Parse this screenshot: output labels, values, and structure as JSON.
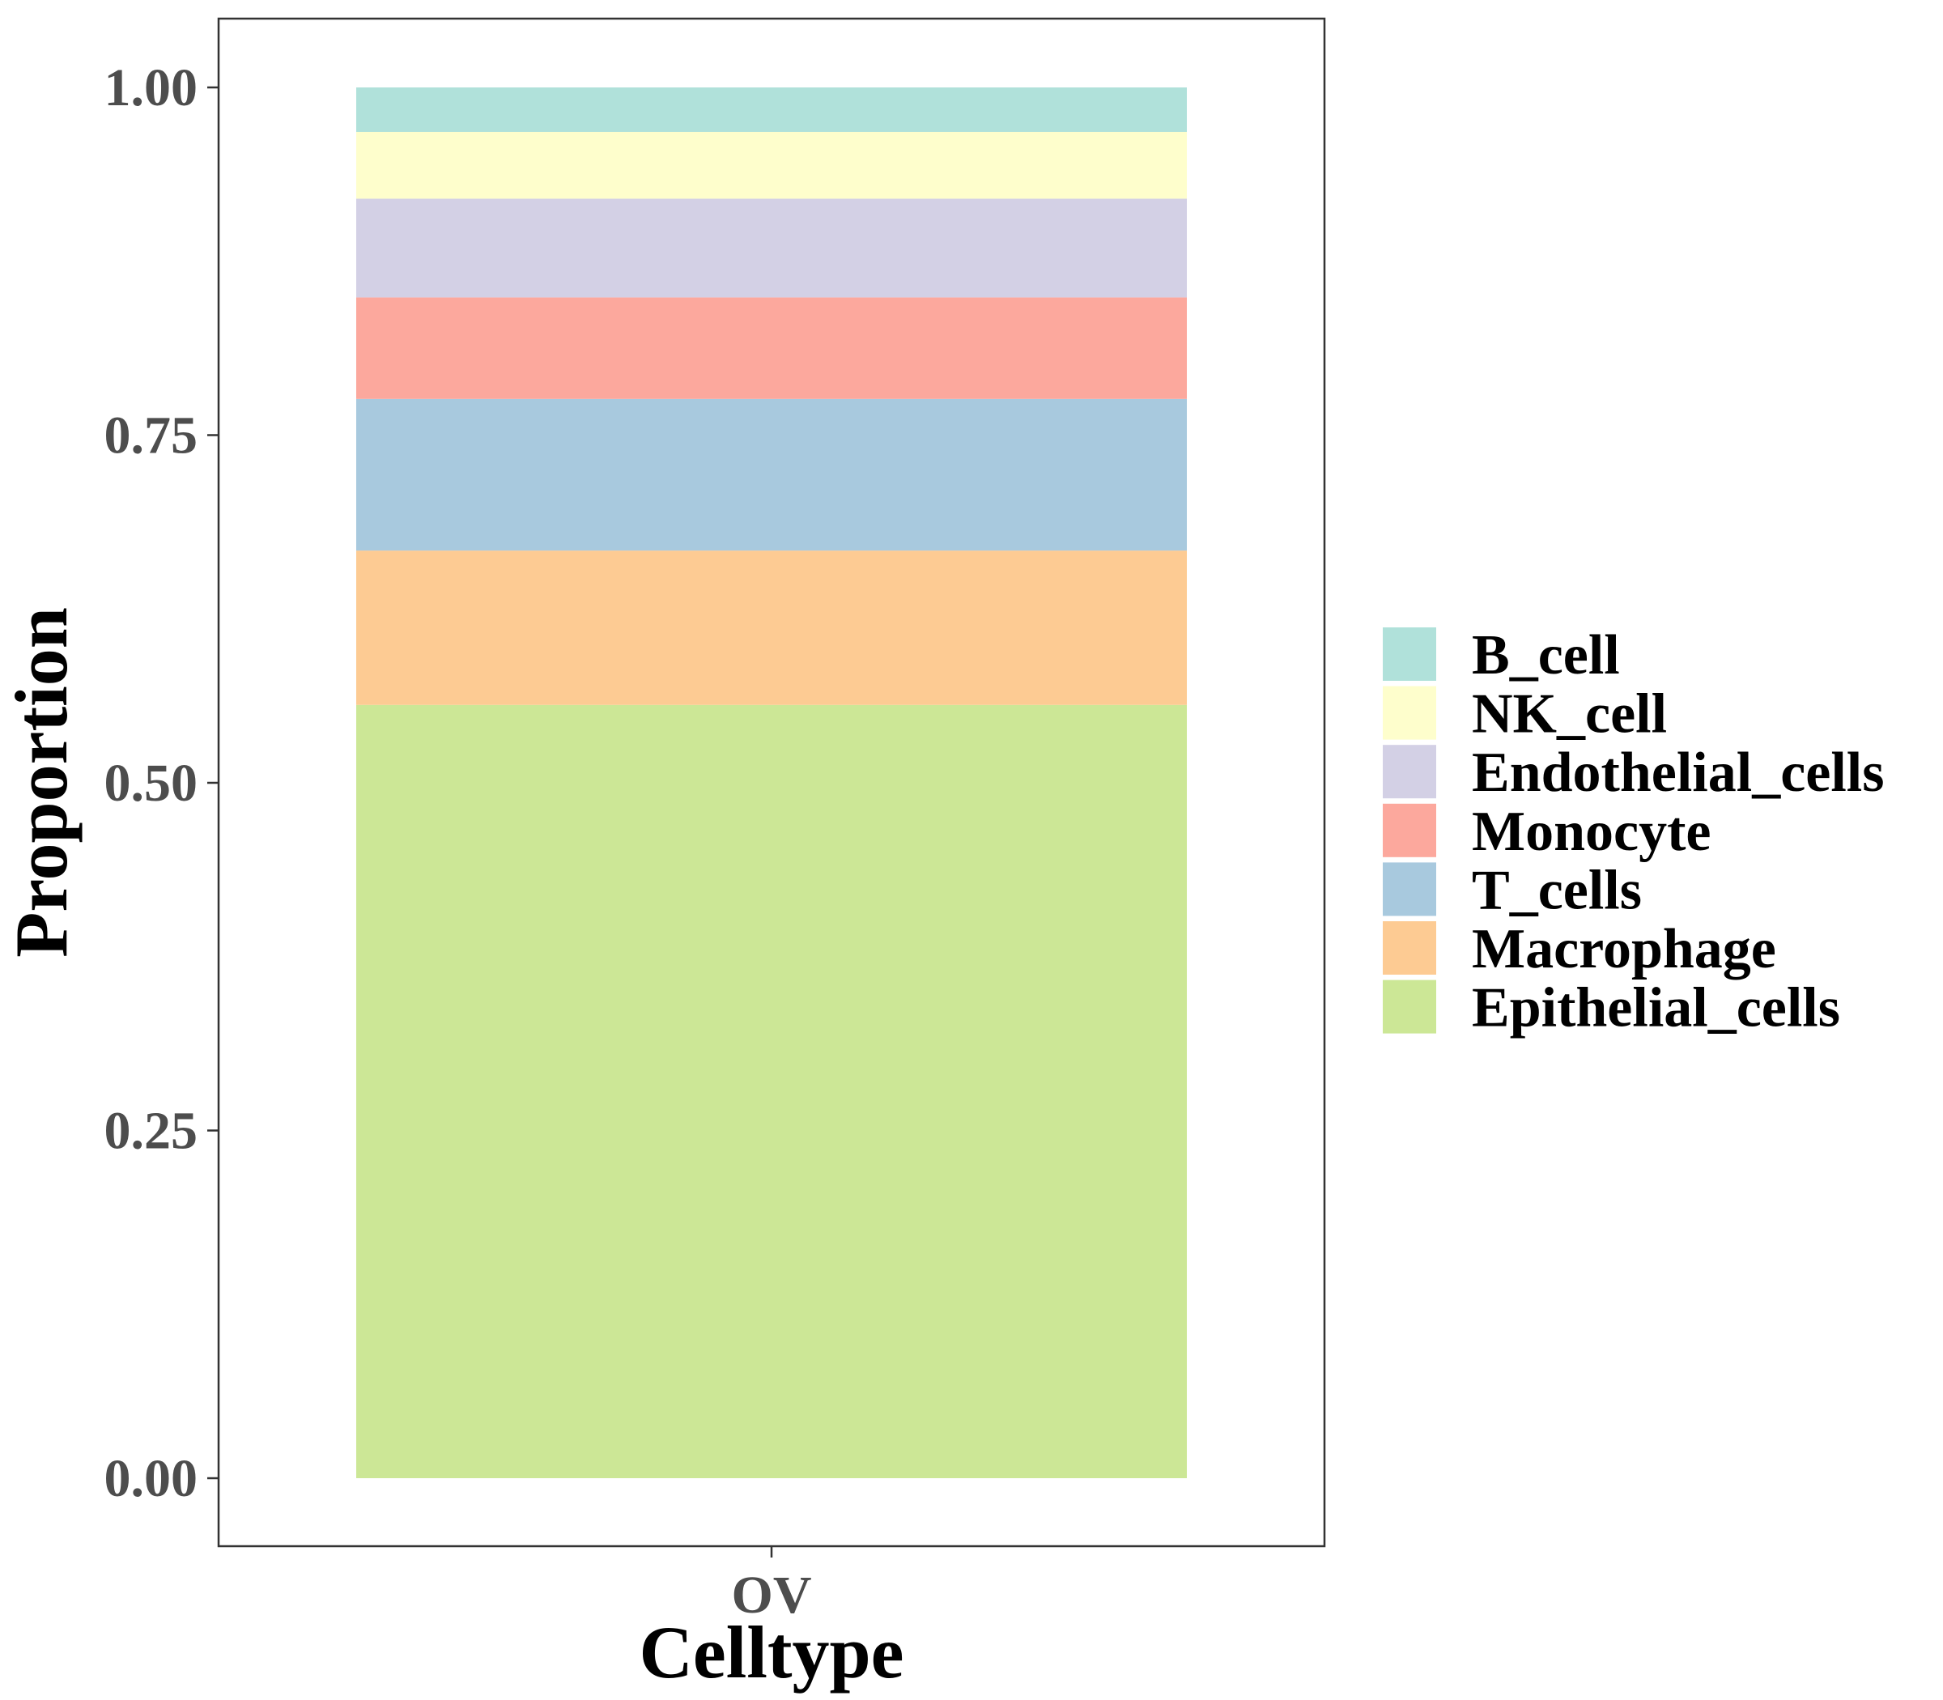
{
  "chart_data": {
    "type": "bar",
    "stacked": true,
    "title": "",
    "xlabel": "Celltype",
    "ylabel": "Proportion",
    "categories": [
      "OV"
    ],
    "ylim": [
      0,
      1
    ],
    "yticks": [
      0.0,
      0.25,
      0.5,
      0.75,
      1.0
    ],
    "ytick_labels": [
      "0.00",
      "0.25",
      "0.50",
      "0.75",
      "1.00"
    ],
    "grid": false,
    "legend_position": "right",
    "series": [
      {
        "name": "Epithelial_cells",
        "values": [
          0.556
        ],
        "color": "#CCE796"
      },
      {
        "name": "Macrophage",
        "values": [
          0.111
        ],
        "color": "#FDCB93"
      },
      {
        "name": "T_cells",
        "values": [
          0.109
        ],
        "color": "#A8C9DE"
      },
      {
        "name": "Monocyte",
        "values": [
          0.073
        ],
        "color": "#FCA89D"
      },
      {
        "name": "Endothelial_cells",
        "values": [
          0.071
        ],
        "color": "#D3D0E5"
      },
      {
        "name": "NK_cell",
        "values": [
          0.048
        ],
        "color": "#FEFECC"
      },
      {
        "name": "B_cell",
        "values": [
          0.032
        ],
        "color": "#B0E1DA"
      }
    ],
    "legend_order": [
      "B_cell",
      "NK_cell",
      "Endothelial_cells",
      "Monocyte",
      "T_cells",
      "Macrophage",
      "Epithelial_cells"
    ]
  }
}
